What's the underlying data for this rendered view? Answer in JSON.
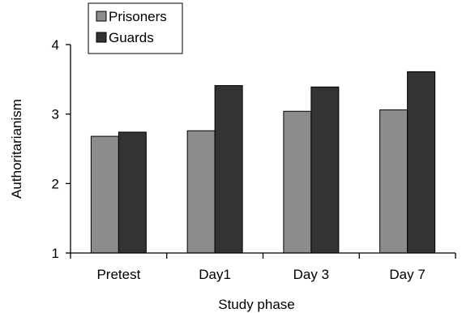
{
  "chart_data": {
    "type": "bar",
    "title": "",
    "xlabel": "Study phase",
    "ylabel": "Authoritarianism",
    "categories": [
      "Pretest",
      "Day1",
      "Day 3",
      "Day 7"
    ],
    "ylim": [
      1,
      4
    ],
    "yticks": [
      "1",
      "2",
      "3",
      "4"
    ],
    "grid": false,
    "legend_position": "top-left",
    "series": [
      {
        "name": "Prisoners",
        "color": "#8c8c8c",
        "values": [
          2.68,
          2.76,
          3.04,
          3.06
        ]
      },
      {
        "name": "Guards",
        "color": "#333333",
        "values": [
          2.74,
          3.41,
          3.39,
          3.61
        ]
      }
    ]
  }
}
